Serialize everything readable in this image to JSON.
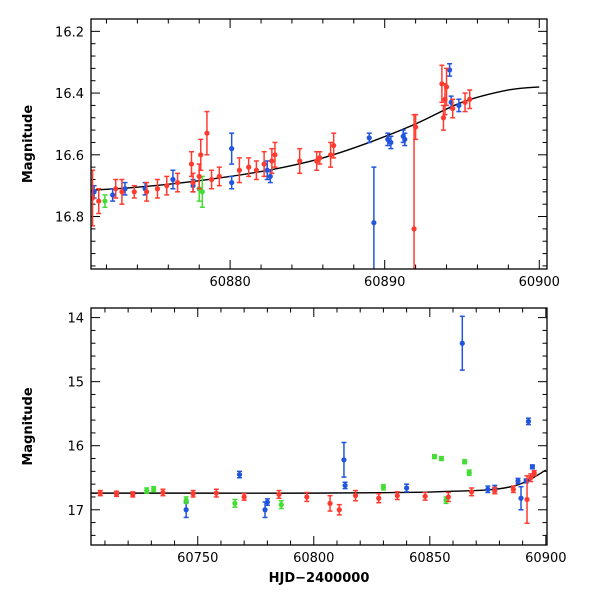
{
  "chart_data": [
    {
      "type": "scatter",
      "panel": "top",
      "xlabel": "",
      "ylabel": "Magnitude",
      "xlim": [
        60871,
        60900.5
      ],
      "ylim": [
        16.97,
        16.16
      ],
      "y_inverted": true,
      "xticks": [
        60880,
        60890,
        60900
      ],
      "yticks": [
        16.2,
        16.4,
        16.6,
        16.8
      ],
      "grid": false,
      "colors": {
        "blue": "#2255dd",
        "green": "#44dd33",
        "red": "#ff3b30",
        "model": "#000000"
      },
      "model_curve": {
        "x": [
          60871,
          60874,
          60877,
          60880,
          60883,
          60886,
          60889,
          60892,
          60895,
          60898,
          60900
        ],
        "y": [
          16.715,
          16.705,
          16.69,
          16.67,
          16.645,
          16.61,
          16.56,
          16.5,
          16.43,
          16.39,
          16.38
        ]
      },
      "series": [
        {
          "color": "blue",
          "points": [
            [
              60871.2,
              16.72,
              0.02
            ],
            [
              60872.4,
              16.73,
              0.02
            ],
            [
              60873.2,
              16.71,
              0.02
            ],
            [
              60874.5,
              16.71,
              0.02
            ],
            [
              60876.3,
              16.68,
              0.03
            ],
            [
              60877.6,
              16.7,
              0.02
            ],
            [
              60880.1,
              16.58,
              0.05
            ],
            [
              60880.1,
              16.69,
              0.02
            ],
            [
              60882.4,
              16.65,
              0.03
            ],
            [
              60882.6,
              16.67,
              0.02
            ],
            [
              60889,
              16.545,
              0.015
            ],
            [
              60889.3,
              16.82,
              0.18
            ],
            [
              60890.2,
              16.55,
              0.02
            ],
            [
              60890.4,
              16.56,
              0.02
            ],
            [
              60891.2,
              16.54,
              0.02
            ],
            [
              60891.3,
              16.55,
              0.02
            ],
            [
              60894.2,
              16.325,
              0.02
            ],
            [
              60894.3,
              16.43,
              0.02
            ],
            [
              60894.8,
              16.44,
              0.02
            ]
          ]
        },
        {
          "color": "green",
          "points": [
            [
              60871.9,
              16.75,
              0.02
            ],
            [
              60878,
              16.71,
              0.04
            ],
            [
              60878.2,
              16.72,
              0.05
            ]
          ]
        },
        {
          "color": "red",
          "points": [
            [
              60871.1,
              16.74,
              0.09
            ],
            [
              60871.5,
              16.75,
              0.04
            ],
            [
              60872.6,
              16.71,
              0.03
            ],
            [
              60873,
              16.72,
              0.04
            ],
            [
              60873.8,
              16.72,
              0.02
            ],
            [
              60874.6,
              16.72,
              0.03
            ],
            [
              60875.3,
              16.71,
              0.03
            ],
            [
              60875.9,
              16.7,
              0.03
            ],
            [
              60876.6,
              16.69,
              0.03
            ],
            [
              60877.5,
              16.63,
              0.04
            ],
            [
              60877.6,
              16.69,
              0.03
            ],
            [
              60878,
              16.67,
              0.04
            ],
            [
              60878.1,
              16.6,
              0.05
            ],
            [
              60878.5,
              16.53,
              0.07
            ],
            [
              60878.8,
              16.68,
              0.03
            ],
            [
              60879.3,
              16.67,
              0.03
            ],
            [
              60880.6,
              16.65,
              0.04
            ],
            [
              60881.2,
              16.64,
              0.03
            ],
            [
              60881.7,
              16.65,
              0.03
            ],
            [
              60882.2,
              16.63,
              0.04
            ],
            [
              60882.7,
              16.62,
              0.04
            ],
            [
              60882.9,
              16.6,
              0.04
            ],
            [
              60884.5,
              16.62,
              0.04
            ],
            [
              60885.6,
              16.62,
              0.03
            ],
            [
              60885.8,
              16.61,
              0.02
            ],
            [
              60886.5,
              16.6,
              0.04
            ],
            [
              60886.7,
              16.57,
              0.04
            ],
            [
              60891.9,
              16.84,
              0.37
            ],
            [
              60892,
              16.51,
              0.04
            ],
            [
              60893.7,
              16.37,
              0.06
            ],
            [
              60893.8,
              16.48,
              0.04
            ],
            [
              60893.9,
              16.42,
              0.05
            ],
            [
              60894,
              16.38,
              0.06
            ],
            [
              60894.4,
              16.45,
              0.03
            ],
            [
              60895.2,
              16.43,
              0.03
            ],
            [
              60895.5,
              16.42,
              0.03
            ]
          ]
        }
      ]
    },
    {
      "type": "scatter",
      "panel": "bottom",
      "xlabel": "HJD−2400000",
      "ylabel": "Magnitude",
      "xlim": [
        60704,
        60900.5
      ],
      "ylim": [
        17.55,
        13.85
      ],
      "y_inverted": true,
      "xticks": [
        60750,
        60800,
        60850,
        60900
      ],
      "yticks": [
        14,
        15,
        16,
        17
      ],
      "grid": false,
      "colors": {
        "blue": "#2255dd",
        "green": "#44dd33",
        "red": "#ff3b30",
        "model": "#000000"
      },
      "model_curve": {
        "x": [
          60704,
          60750,
          60800,
          60840,
          60860,
          60875,
          60885,
          60892,
          60900
        ],
        "y": [
          16.74,
          16.74,
          16.74,
          16.73,
          16.71,
          16.69,
          16.64,
          16.55,
          16.38
        ]
      },
      "series": [
        {
          "color": "blue",
          "points": [
            [
              60745,
              17.0,
              0.12
            ],
            [
              60768,
              16.45,
              0.05
            ],
            [
              60779,
              17.0,
              0.12
            ],
            [
              60780,
              16.88,
              0.05
            ],
            [
              60813,
              16.22,
              0.27
            ],
            [
              60813.5,
              16.62,
              0.05
            ],
            [
              60840,
              16.66,
              0.06
            ],
            [
              60864,
              14.4,
              0.42
            ],
            [
              60875,
              16.68,
              0.05
            ],
            [
              60878,
              16.67,
              0.05
            ],
            [
              60888,
              16.55,
              0.04
            ],
            [
              60889.3,
              16.82,
              0.18
            ],
            [
              60891.5,
              16.55,
              0.03
            ],
            [
              60892.5,
              15.62,
              0.05
            ],
            [
              60894.2,
              16.33,
              0.03
            ]
          ]
        },
        {
          "color": "green",
          "points": [
            [
              60728,
              16.7,
              0.04
            ],
            [
              60731,
              16.68,
              0.04
            ],
            [
              60745,
              16.85,
              0.05
            ],
            [
              60766,
              16.9,
              0.06
            ],
            [
              60786,
              16.92,
              0.06
            ],
            [
              60830,
              16.65,
              0.04
            ],
            [
              60852,
              16.17,
              0.03
            ],
            [
              60855,
              16.2,
              0.03
            ],
            [
              60857,
              16.85,
              0.05
            ],
            [
              60865,
              16.25,
              0.03
            ],
            [
              60867,
              16.42,
              0.04
            ]
          ]
        },
        {
          "color": "red",
          "points": [
            [
              60708,
              16.74,
              0.04
            ],
            [
              60715,
              16.75,
              0.04
            ],
            [
              60722,
              16.76,
              0.04
            ],
            [
              60735,
              16.73,
              0.05
            ],
            [
              60748,
              16.75,
              0.05
            ],
            [
              60758,
              16.74,
              0.06
            ],
            [
              60770,
              16.8,
              0.05
            ],
            [
              60785,
              16.76,
              0.06
            ],
            [
              60797,
              16.8,
              0.07
            ],
            [
              60807,
              16.9,
              0.12
            ],
            [
              60811,
              17.0,
              0.08
            ],
            [
              60818,
              16.78,
              0.08
            ],
            [
              60828,
              16.82,
              0.07
            ],
            [
              60836,
              16.78,
              0.06
            ],
            [
              60848,
              16.79,
              0.06
            ],
            [
              60858,
              16.8,
              0.07
            ],
            [
              60868,
              16.72,
              0.06
            ],
            [
              60878,
              16.7,
              0.05
            ],
            [
              60886,
              16.68,
              0.05
            ],
            [
              60891.9,
              16.84,
              0.37
            ],
            [
              60893.5,
              16.5,
              0.06
            ],
            [
              60895,
              16.43,
              0.04
            ]
          ]
        }
      ]
    }
  ]
}
